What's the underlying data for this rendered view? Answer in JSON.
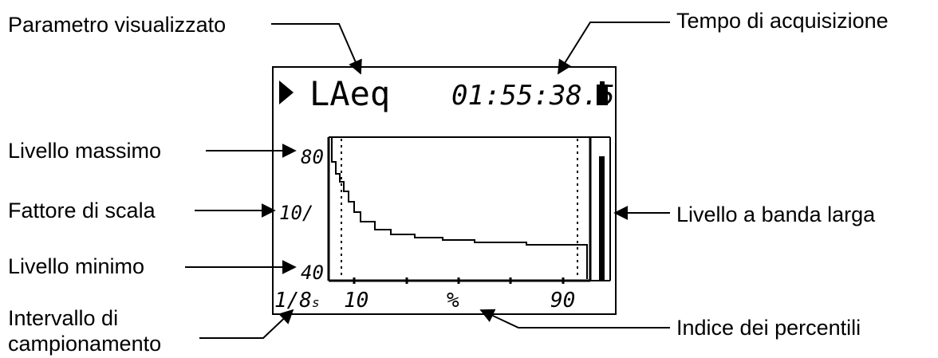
{
  "annotations": {
    "parametro": "Parametro visualizzato",
    "tempo": "Tempo di acquisizione",
    "livello_massimo": "Livello massimo",
    "fattore_scala": "Fattore di scala",
    "livello_minimo": "Livello minimo",
    "intervallo_line1": "Intervallo di",
    "intervallo_line2": "campionamento",
    "livello_banda": "Livello a banda larga",
    "indice_percentili": "Indice dei percentili"
  },
  "display": {
    "parameter": "LAeq",
    "time": "01:55:38.5",
    "y_max": "80",
    "scale_factor": "10/",
    "y_min": "40",
    "interval_main": "1/8",
    "interval_unit": "s",
    "x_label_left": "10",
    "x_label_center": "%",
    "x_label_right": "90",
    "play-icon": "play-icon",
    "battery-icon": "battery-icon"
  }
}
